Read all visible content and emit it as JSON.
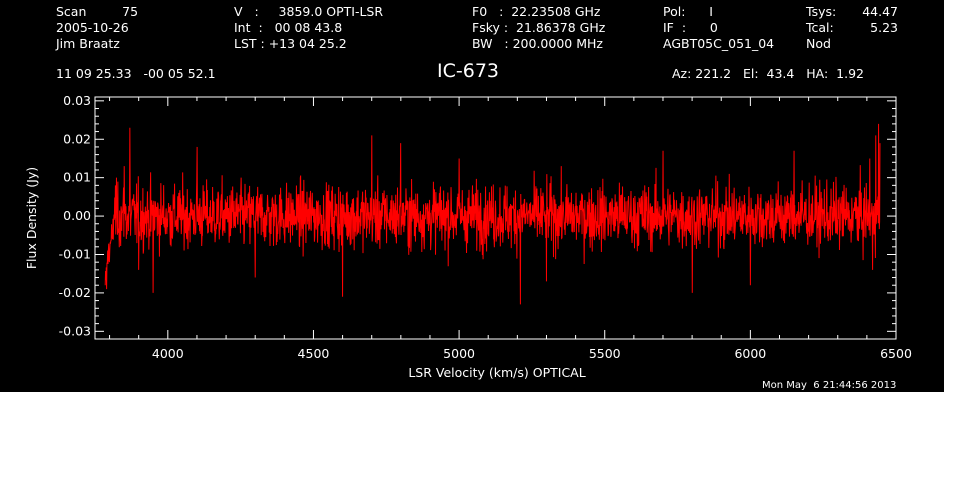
{
  "header": {
    "col1": [
      "Scan         75",
      "2005-10-26",
      "Jim Braatz"
    ],
    "col2": [
      "V   :     3859.0 OPTI-LSR",
      "Int  :   00 08 43.8",
      "LST : +13 04 25.2"
    ],
    "col3": [
      "F0   :  22.23508 GHz",
      "Fsky :  21.86378 GHz",
      "BW   : 200.0000 MHz"
    ],
    "col4": [
      "Pol:      I",
      "IF  :      0",
      "AGBT05C_051_04"
    ],
    "col5": [
      "Tsys:",
      "Tcal:",
      "Nod"
    ],
    "col6": [
      "44.47",
      "5.23"
    ],
    "coords": "11 09 25.33   -00 05 52.1",
    "source": "IC-673",
    "azel": "Az: 221.2   El:  43.4   HA:  1.92",
    "timestamp": "Mon May  6 21:44:56 2013"
  },
  "colors": {
    "background": "#000000",
    "trace": "#ff0000",
    "axes": "#ffffff"
  },
  "chart_data": {
    "type": "line",
    "xlabel": "LSR Velocity (km/s) OPTICAL",
    "ylabel": "Flux Density (Jy)",
    "xlim": [
      3750,
      6500
    ],
    "ylim": [
      -0.032,
      0.031
    ],
    "xticks": [
      4000,
      4500,
      5000,
      5500,
      6000,
      6500
    ],
    "xtick_labels": [
      "4000",
      "4500",
      "5000",
      "5500",
      "6000",
      "6500"
    ],
    "yticks": [
      -0.03,
      -0.02,
      -0.01,
      0.0,
      0.01,
      0.02,
      0.03
    ],
    "ytick_labels": [
      "-0.03",
      "-0.02",
      "-0.01",
      "0.00",
      "0.01",
      "0.02",
      "0.03"
    ],
    "grid": false,
    "series": [
      {
        "x_range": [
          3785,
          6445
        ],
        "noise_rms": 0.0055,
        "values_sampled": [
          [
            3785,
            -0.018
          ],
          [
            3790,
            -0.019
          ],
          [
            3800,
            -0.012
          ],
          [
            3810,
            -0.006
          ],
          [
            3820,
            0.008
          ],
          [
            3850,
            0.013
          ],
          [
            3870,
            0.023
          ],
          [
            3900,
            -0.014
          ],
          [
            3950,
            -0.02
          ],
          [
            4100,
            0.018
          ],
          [
            4300,
            -0.016
          ],
          [
            4600,
            -0.021
          ],
          [
            4700,
            0.021
          ],
          [
            4800,
            0.019
          ],
          [
            5000,
            0.015
          ],
          [
            5210,
            -0.023
          ],
          [
            5300,
            -0.017
          ],
          [
            5700,
            0.017
          ],
          [
            5800,
            -0.02
          ],
          [
            6000,
            -0.018
          ],
          [
            6150,
            0.017
          ],
          [
            6410,
            0.015
          ],
          [
            6420,
            -0.014
          ],
          [
            6430,
            0.021
          ],
          [
            6440,
            0.024
          ],
          [
            6445,
            0.019
          ]
        ]
      }
    ]
  }
}
